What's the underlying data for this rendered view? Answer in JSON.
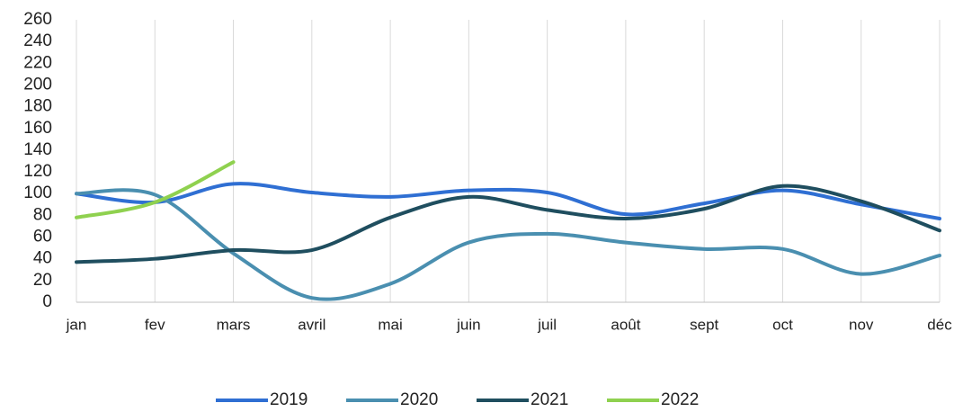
{
  "chart_data": {
    "type": "line",
    "categories": [
      "jan",
      "fev",
      "mars",
      "avril",
      "mai",
      "juin",
      "juil",
      "août",
      "sept",
      "oct",
      "nov",
      "déc"
    ],
    "series": [
      {
        "name": "2019",
        "color": "#2f6fd3",
        "values": [
          100,
          92,
          109,
          101,
          97,
          103,
          101,
          81,
          91,
          103,
          90,
          77
        ]
      },
      {
        "name": "2020",
        "color": "#4a8fb0",
        "values": [
          100,
          99,
          45,
          4,
          17,
          55,
          63,
          55,
          49,
          49,
          26,
          43
        ]
      },
      {
        "name": "2021",
        "color": "#1f4e5f",
        "values": [
          37,
          40,
          48,
          48,
          78,
          97,
          85,
          77,
          86,
          107,
          93,
          66
        ]
      },
      {
        "name": "2022",
        "color": "#8fd14f",
        "values": [
          78,
          92,
          129,
          null,
          null,
          null,
          null,
          null,
          null,
          null,
          null,
          null
        ]
      }
    ],
    "ylim": [
      0,
      260
    ],
    "yticks": [
      0,
      20,
      40,
      60,
      80,
      100,
      120,
      140,
      160,
      180,
      200,
      220,
      240,
      260
    ],
    "grid": true,
    "legend": "bottom"
  }
}
